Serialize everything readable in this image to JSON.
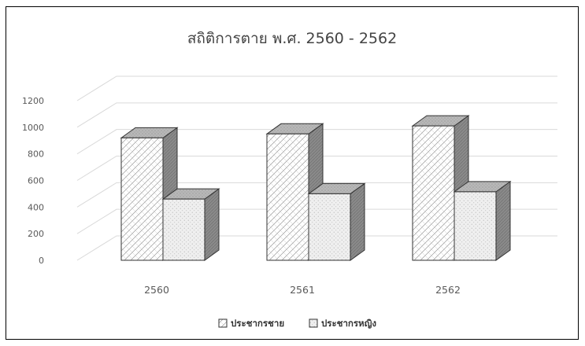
{
  "chart_data": {
    "type": "bar",
    "title": "สถิติการตาย พ.ศ. 2560 - 2562",
    "categories": [
      "2560",
      "2561",
      "2562"
    ],
    "series": [
      {
        "name": "ประชากรชาย",
        "values": [
          920,
          950,
          1010
        ]
      },
      {
        "name": "ประชากรหญิง",
        "values": [
          460,
          500,
          515
        ]
      }
    ],
    "ylim": [
      0,
      1200
    ],
    "yticks": [
      0,
      200,
      400,
      600,
      800,
      1000,
      1200
    ],
    "grid": true,
    "legend": "bottom",
    "view": "3d-clustered-column",
    "colors": {
      "male_fill": "#ffffff",
      "female_fill": "#ececec",
      "side_fill": "#8c8c8c",
      "top_fill": "#b4b4b4",
      "outline": "#333333",
      "grid": "#d9d9d9"
    }
  }
}
